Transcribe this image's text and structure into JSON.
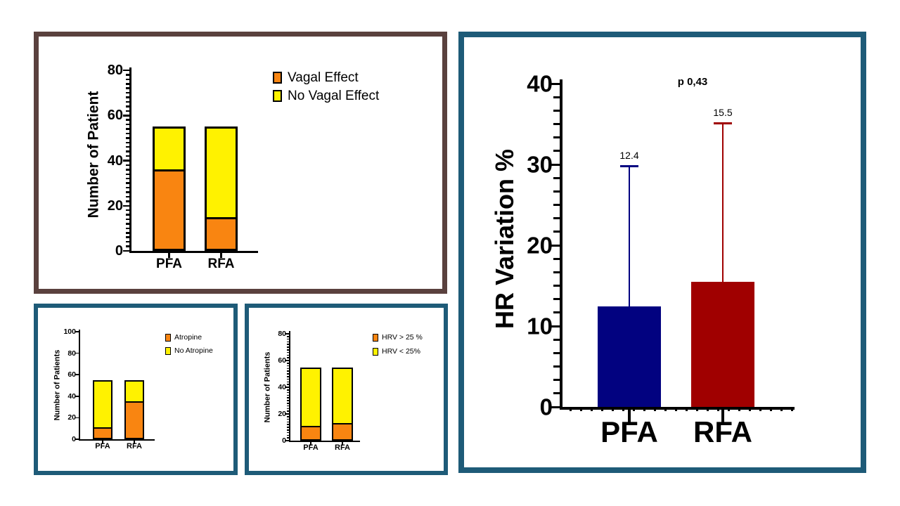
{
  "figure": {
    "background": "#ffffff"
  },
  "colors": {
    "panel_border_brown": "#5A413E",
    "panel_border_teal": "#1E5B78",
    "orange": "#F98511",
    "yellow": "#FFF200",
    "navy": "#020280",
    "dark_red": "#A00000",
    "axis_black": "#000000"
  },
  "chart_data": [
    {
      "id": "vagal-effect",
      "type": "bar",
      "subtype": "stacked",
      "title": "",
      "ylabel": "Number of Patient",
      "xlabel": "",
      "categories": [
        "PFA",
        "RFA"
      ],
      "series": [
        {
          "name": "Vagal Effect",
          "color": "#F98511",
          "values": [
            36,
            15
          ]
        },
        {
          "name": "No Vagal Effect",
          "color": "#FFF200",
          "values": [
            19,
            40
          ]
        }
      ],
      "stack_totals": [
        55,
        55
      ],
      "yticks": [
        0,
        20,
        40,
        60,
        80
      ],
      "ylim": [
        0,
        80
      ],
      "grid": false,
      "legend_position": "top-right"
    },
    {
      "id": "atropine",
      "type": "bar",
      "subtype": "stacked",
      "title": "",
      "ylabel": "Number of Patients",
      "xlabel": "",
      "categories": [
        "PFA",
        "RFA"
      ],
      "series": [
        {
          "name": "Atropine",
          "color": "#F98511",
          "values": [
            11,
            35
          ]
        },
        {
          "name": "No Atropine",
          "color": "#FFF200",
          "values": [
            44,
            20
          ]
        }
      ],
      "stack_totals": [
        55,
        55
      ],
      "yticks": [
        0,
        20,
        40,
        60,
        80,
        100
      ],
      "ylim": [
        0,
        100
      ],
      "grid": false,
      "legend_position": "top-right"
    },
    {
      "id": "hrv",
      "type": "bar",
      "subtype": "stacked",
      "title": "",
      "ylabel": "Number of Patients",
      "xlabel": "",
      "categories": [
        "PFA",
        "RFA"
      ],
      "series": [
        {
          "name": "HRV > 25 %",
          "color": "#F98511",
          "values": [
            11,
            13
          ]
        },
        {
          "name": "HRV < 25%",
          "color": "#FFF200",
          "values": [
            44,
            42
          ]
        }
      ],
      "stack_totals": [
        55,
        55
      ],
      "yticks": [
        0,
        20,
        40,
        60,
        80
      ],
      "ylim": [
        0,
        80
      ],
      "grid": false,
      "legend_position": "top-right"
    },
    {
      "id": "hr-variation",
      "type": "bar",
      "subtype": "mean-with-sd-error",
      "title": "",
      "ylabel": "HR Variation %",
      "xlabel": "",
      "categories": [
        "PFA",
        "RFA"
      ],
      "values": [
        12.4,
        15.5
      ],
      "value_labels": [
        "12.4",
        "15.5"
      ],
      "error_top": [
        29.8,
        35.1
      ],
      "bar_colors": [
        "#020280",
        "#A00000"
      ],
      "annotation": "p 0,43",
      "yticks": [
        0,
        10,
        20,
        30,
        40
      ],
      "ylim": [
        0,
        40
      ],
      "grid": false,
      "legend_position": "none"
    }
  ]
}
